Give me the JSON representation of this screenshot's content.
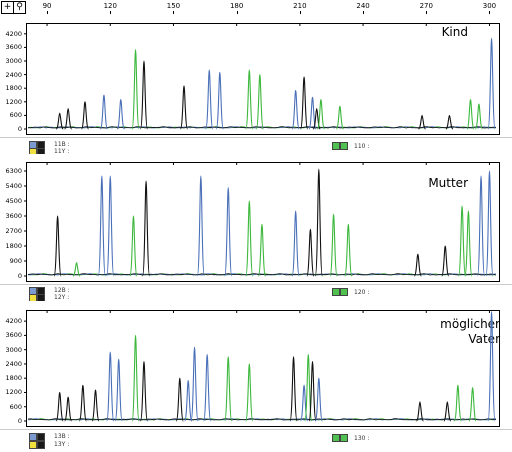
{
  "toolbar": {
    "icons": [
      "plus-cursor-icon",
      "zoom-icon"
    ]
  },
  "ruler": {
    "ticks": [
      "90",
      "120",
      "150",
      "180",
      "210",
      "240",
      "270",
      "300"
    ]
  },
  "colors": {
    "black": "#111111",
    "blue": "#4a70b8",
    "green": "#3cb83c"
  },
  "panels": [
    {
      "title": "Kind",
      "yticks": [
        "4200",
        "3600",
        "3000",
        "2400",
        "1800",
        "1200",
        "600",
        "0"
      ],
      "ymax": 4500,
      "legend": {
        "row1": "11B :",
        "row2": "11Y :",
        "center": "110 :"
      },
      "peaks": [
        {
          "x": 96,
          "h": 700,
          "c": "black"
        },
        {
          "x": 100,
          "h": 900,
          "c": "black"
        },
        {
          "x": 108,
          "h": 1200,
          "c": "black"
        },
        {
          "x": 117,
          "h": 1500,
          "c": "blue"
        },
        {
          "x": 125,
          "h": 1300,
          "c": "blue"
        },
        {
          "x": 132,
          "h": 3500,
          "c": "green"
        },
        {
          "x": 136,
          "h": 3000,
          "c": "black"
        },
        {
          "x": 155,
          "h": 1900,
          "c": "black"
        },
        {
          "x": 167,
          "h": 2600,
          "c": "blue"
        },
        {
          "x": 172,
          "h": 2500,
          "c": "blue"
        },
        {
          "x": 186,
          "h": 2600,
          "c": "green"
        },
        {
          "x": 191,
          "h": 2400,
          "c": "green"
        },
        {
          "x": 208,
          "h": 1700,
          "c": "blue"
        },
        {
          "x": 212,
          "h": 2300,
          "c": "black"
        },
        {
          "x": 216,
          "h": 1400,
          "c": "blue"
        },
        {
          "x": 218,
          "h": 900,
          "c": "black"
        },
        {
          "x": 220,
          "h": 1300,
          "c": "green"
        },
        {
          "x": 229,
          "h": 1000,
          "c": "green"
        },
        {
          "x": 268,
          "h": 600,
          "c": "black"
        },
        {
          "x": 281,
          "h": 600,
          "c": "black"
        },
        {
          "x": 291,
          "h": 1300,
          "c": "green"
        },
        {
          "x": 295,
          "h": 1100,
          "c": "green"
        },
        {
          "x": 301,
          "h": 4000,
          "c": "blue"
        }
      ]
    },
    {
      "title": "Mutter",
      "yticks": [
        "6300",
        "5400",
        "4500",
        "3600",
        "2700",
        "1800",
        "900",
        "0"
      ],
      "ymax": 6600,
      "legend": {
        "row1": "12B :",
        "row2": "12Y :",
        "center": "120 :"
      },
      "peaks": [
        {
          "x": 95,
          "h": 3600,
          "c": "black"
        },
        {
          "x": 104,
          "h": 800,
          "c": "green"
        },
        {
          "x": 116,
          "h": 6000,
          "c": "blue"
        },
        {
          "x": 120,
          "h": 6000,
          "c": "blue"
        },
        {
          "x": 131,
          "h": 3600,
          "c": "green"
        },
        {
          "x": 137,
          "h": 5700,
          "c": "black"
        },
        {
          "x": 163,
          "h": 6000,
          "c": "blue"
        },
        {
          "x": 176,
          "h": 5300,
          "c": "blue"
        },
        {
          "x": 186,
          "h": 4500,
          "c": "green"
        },
        {
          "x": 192,
          "h": 3100,
          "c": "green"
        },
        {
          "x": 208,
          "h": 3900,
          "c": "blue"
        },
        {
          "x": 215,
          "h": 2800,
          "c": "black"
        },
        {
          "x": 219,
          "h": 6400,
          "c": "black"
        },
        {
          "x": 226,
          "h": 3700,
          "c": "green"
        },
        {
          "x": 233,
          "h": 3100,
          "c": "green"
        },
        {
          "x": 266,
          "h": 1300,
          "c": "black"
        },
        {
          "x": 279,
          "h": 1800,
          "c": "black"
        },
        {
          "x": 287,
          "h": 4200,
          "c": "green"
        },
        {
          "x": 290,
          "h": 3900,
          "c": "green"
        },
        {
          "x": 296,
          "h": 6000,
          "c": "blue"
        },
        {
          "x": 300,
          "h": 6300,
          "c": "blue"
        }
      ]
    },
    {
      "title": "möglicher Vater",
      "title_lines": [
        "möglicher",
        "Vater"
      ],
      "yticks": [
        "4200",
        "3600",
        "3000",
        "2400",
        "1800",
        "1200",
        "600",
        "0"
      ],
      "ymax": 4500,
      "legend": {
        "row1": "13B :",
        "row2": "13Y :",
        "center": "130 :"
      },
      "peaks": [
        {
          "x": 96,
          "h": 1200,
          "c": "black"
        },
        {
          "x": 100,
          "h": 1000,
          "c": "black"
        },
        {
          "x": 107,
          "h": 1500,
          "c": "black"
        },
        {
          "x": 113,
          "h": 1300,
          "c": "black"
        },
        {
          "x": 120,
          "h": 2900,
          "c": "blue"
        },
        {
          "x": 124,
          "h": 2600,
          "c": "blue"
        },
        {
          "x": 132,
          "h": 3600,
          "c": "green"
        },
        {
          "x": 136,
          "h": 2500,
          "c": "black"
        },
        {
          "x": 153,
          "h": 1800,
          "c": "black"
        },
        {
          "x": 157,
          "h": 1700,
          "c": "blue"
        },
        {
          "x": 160,
          "h": 3100,
          "c": "blue"
        },
        {
          "x": 166,
          "h": 2800,
          "c": "blue"
        },
        {
          "x": 176,
          "h": 2700,
          "c": "green"
        },
        {
          "x": 186,
          "h": 2400,
          "c": "green"
        },
        {
          "x": 207,
          "h": 2700,
          "c": "black"
        },
        {
          "x": 212,
          "h": 1500,
          "c": "blue"
        },
        {
          "x": 214,
          "h": 2800,
          "c": "green"
        },
        {
          "x": 216,
          "h": 2500,
          "c": "black"
        },
        {
          "x": 219,
          "h": 1800,
          "c": "blue"
        },
        {
          "x": 267,
          "h": 800,
          "c": "black"
        },
        {
          "x": 280,
          "h": 800,
          "c": "black"
        },
        {
          "x": 285,
          "h": 1500,
          "c": "green"
        },
        {
          "x": 292,
          "h": 1400,
          "c": "green"
        },
        {
          "x": 301,
          "h": 4600,
          "c": "blue"
        }
      ]
    }
  ]
}
